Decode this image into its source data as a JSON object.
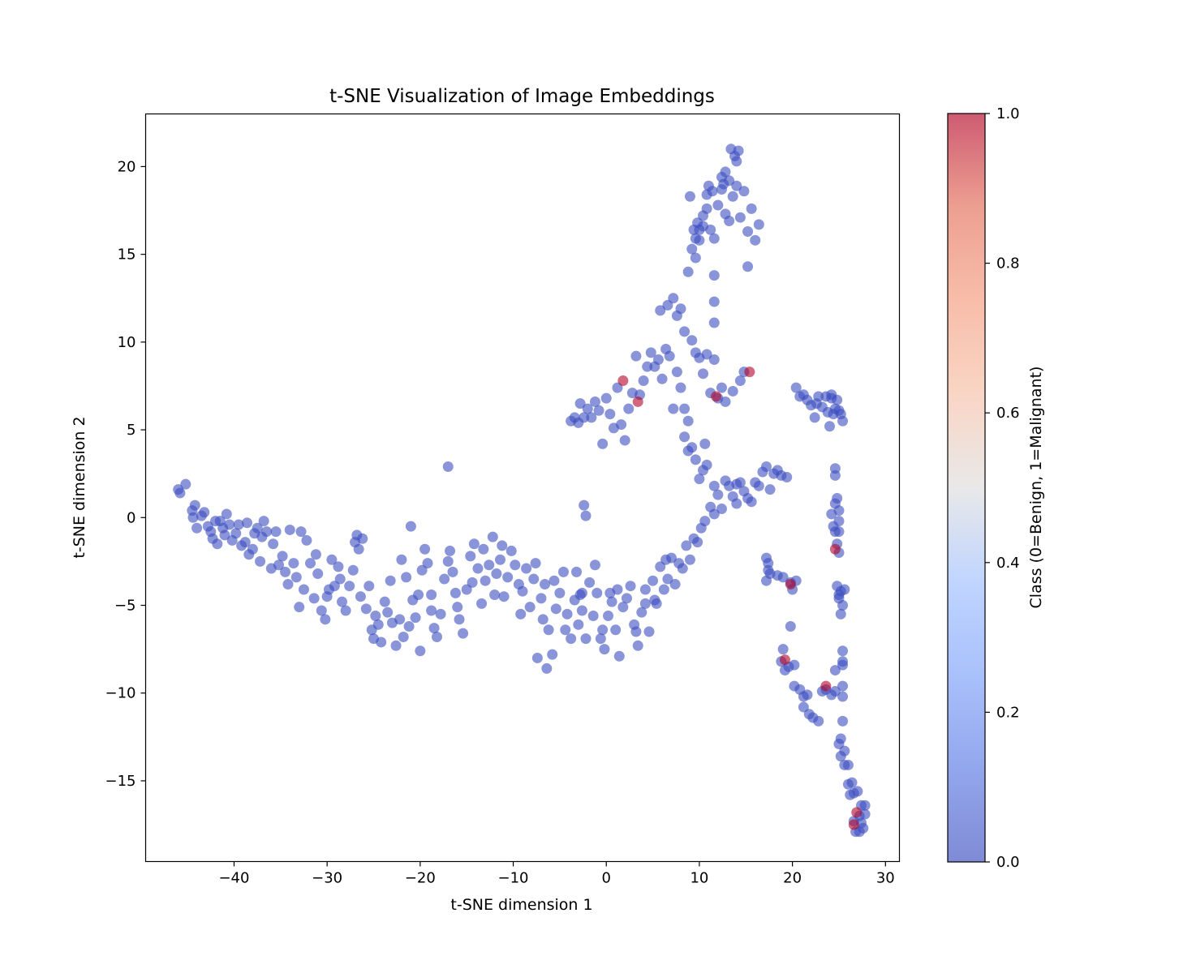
{
  "chart_data": {
    "type": "scatter",
    "title": "t-SNE Visualization of Image Embeddings",
    "xlabel": "t-SNE dimension 1",
    "ylabel": "t-SNE dimension 2",
    "xlim": [
      -49.5,
      31.5
    ],
    "ylim": [
      -19.6,
      23
    ],
    "xticks": [
      -40,
      -30,
      -20,
      -10,
      0,
      10,
      20,
      30
    ],
    "yticks": [
      -15,
      -10,
      -5,
      0,
      5,
      10,
      15,
      20
    ],
    "x_tick_labels": [
      "−40",
      "−30",
      "−20",
      "−10",
      "0",
      "10",
      "20",
      "30"
    ],
    "y_tick_labels": [
      "−15",
      "−10",
      "−5",
      "0",
      "5",
      "10",
      "15",
      "20"
    ],
    "grid": false,
    "colorbar": {
      "label": "Class (0=Benign, 1=Malignant)",
      "range": [
        0,
        1
      ],
      "ticks": [
        0,
        0.2,
        0.4,
        0.6,
        0.8,
        1
      ],
      "tick_labels": [
        "0.0",
        "0.2",
        "0.4",
        "0.6",
        "0.8",
        "1.0"
      ],
      "colormap": "coolwarm",
      "low_color": "#3b4cc0",
      "mid_color": "#dddddd",
      "high_color": "#b40426"
    },
    "point_alpha": 0.6,
    "benign_color": "#3b4cc0",
    "malignant_color": "#b40426",
    "benign_points": [
      [
        -46,
        1.6
      ],
      [
        -45.8,
        1.4
      ],
      [
        -44.5,
        0.4
      ],
      [
        -44.2,
        0.7
      ],
      [
        -44.4,
        0
      ],
      [
        -44,
        -0.6
      ],
      [
        -43.5,
        0.1
      ],
      [
        -43.2,
        0.3
      ],
      [
        -42.8,
        -0.5
      ],
      [
        -42.5,
        -0.8
      ],
      [
        -42.3,
        -1.2
      ],
      [
        -41.8,
        -1.5
      ],
      [
        -41.5,
        -0.2
      ],
      [
        -41.2,
        -0.6
      ],
      [
        -41,
        -1
      ],
      [
        -40.8,
        0.2
      ],
      [
        -40.5,
        -0.4
      ],
      [
        -40.2,
        -1.3
      ],
      [
        -39.8,
        -0.9
      ],
      [
        -39.5,
        -0.4
      ],
      [
        -38.8,
        -1.4
      ],
      [
        -38.6,
        -0.3
      ],
      [
        -38.4,
        -2.1
      ],
      [
        -38,
        -1.8
      ],
      [
        -37.8,
        -0.9
      ],
      [
        -37.5,
        -0.6
      ],
      [
        -37,
        -1.1
      ],
      [
        -36.8,
        -0.2
      ],
      [
        -36.5,
        -0.8
      ],
      [
        -36,
        -2.9
      ],
      [
        -35.5,
        -0.8
      ],
      [
        -35.2,
        -2.7
      ],
      [
        -34.8,
        -2.2
      ],
      [
        -34.5,
        -3.1
      ],
      [
        -34,
        -0.7
      ],
      [
        -33.6,
        -2.6
      ],
      [
        -33.3,
        -3.4
      ],
      [
        -32.8,
        -0.8
      ],
      [
        -32.5,
        -4.1
      ],
      [
        -32.2,
        -1.3
      ],
      [
        -31.8,
        -2.6
      ],
      [
        -31.4,
        -4.6
      ],
      [
        -31,
        -3.2
      ],
      [
        -30.6,
        -5.3
      ],
      [
        -30.2,
        -5.8
      ],
      [
        -29.8,
        -4.1
      ],
      [
        -29.5,
        -2.4
      ],
      [
        -29.2,
        -3.9
      ],
      [
        -28.8,
        -2.8
      ],
      [
        -28.4,
        -4.8
      ],
      [
        -28,
        -5.3
      ],
      [
        -27.6,
        -3.9
      ],
      [
        -27.2,
        -3
      ],
      [
        -26.8,
        -1
      ],
      [
        -26.6,
        -1.8
      ],
      [
        -26.2,
        -1.2
      ],
      [
        -25.8,
        -5.2
      ],
      [
        -25.5,
        -3.9
      ],
      [
        -25.2,
        -6.4
      ],
      [
        -24.8,
        -5.6
      ],
      [
        -24.5,
        -6.1
      ],
      [
        -24.2,
        -7.1
      ],
      [
        -23.8,
        -4.8
      ],
      [
        -23.5,
        -5.4
      ],
      [
        -23,
        -6
      ],
      [
        -22.6,
        -7.3
      ],
      [
        -22.2,
        -5.8
      ],
      [
        -21.8,
        -6.8
      ],
      [
        -21.5,
        -3.4
      ],
      [
        -21.2,
        -6.2
      ],
      [
        -20.8,
        -4.7
      ],
      [
        -20.5,
        -5.7
      ],
      [
        -20.2,
        -4.4
      ],
      [
        -19.8,
        -3
      ],
      [
        -19.5,
        -1.8
      ],
      [
        -19.2,
        -2.6
      ],
      [
        -18.8,
        -5.3
      ],
      [
        -18.5,
        -6.3
      ],
      [
        -18.2,
        -6.8
      ],
      [
        -17.8,
        -5.5
      ],
      [
        -17.4,
        -3.5
      ],
      [
        -17,
        -2.5
      ],
      [
        -16.8,
        -1.9
      ],
      [
        -16.5,
        -3.1
      ],
      [
        -16.2,
        -4.3
      ],
      [
        -15.8,
        -5.8
      ],
      [
        -15.4,
        -6.6
      ],
      [
        -15,
        -4.1
      ],
      [
        -14.6,
        -2.2
      ],
      [
        -14.2,
        -1.5
      ],
      [
        -13.8,
        -2.9
      ],
      [
        -13.4,
        -4.9
      ],
      [
        -13,
        -3.6
      ],
      [
        -12.6,
        -2.7
      ],
      [
        -12.2,
        -1.1
      ],
      [
        -11.8,
        -3.2
      ],
      [
        -11.4,
        -2.4
      ],
      [
        -11,
        -4.5
      ],
      [
        -10.6,
        -3.4
      ],
      [
        -10.2,
        -1.9
      ],
      [
        -9.8,
        -2.7
      ],
      [
        -9.4,
        -3.8
      ],
      [
        -9,
        -4.2
      ],
      [
        -8.6,
        -2.9
      ],
      [
        -8.2,
        -5.1
      ],
      [
        -7.8,
        -3.5
      ],
      [
        -7.4,
        -8
      ],
      [
        -7,
        -4.6
      ],
      [
        -6.6,
        -3.8
      ],
      [
        -6.2,
        -6.4
      ],
      [
        -5.8,
        -7.8
      ],
      [
        -5.4,
        -5.2
      ],
      [
        -5,
        -4.3
      ],
      [
        -4.6,
        -3.1
      ],
      [
        -4.2,
        -5.5
      ],
      [
        -3.8,
        -6.9
      ],
      [
        -3.4,
        -4.7
      ],
      [
        -3,
        -6.1
      ],
      [
        -2.6,
        -5.3
      ],
      [
        -2.2,
        -6.9
      ],
      [
        -1.8,
        -3.7
      ],
      [
        -1.4,
        -5.6
      ],
      [
        -1,
        -4.3
      ],
      [
        -0.6,
        -6.9
      ],
      [
        -0.2,
        -7.5
      ],
      [
        0.2,
        -5.6
      ],
      [
        0.6,
        -4.8
      ],
      [
        1,
        -6.4
      ],
      [
        1.4,
        -7.9
      ],
      [
        1.8,
        -5.1
      ],
      [
        2.2,
        -4.6
      ],
      [
        2.6,
        -3.9
      ],
      [
        3,
        -6.1
      ],
      [
        3.4,
        -7.3
      ],
      [
        3.8,
        -5.4
      ],
      [
        4.2,
        -4.9
      ],
      [
        4.6,
        -6.5
      ],
      [
        5,
        -3.6
      ],
      [
        5.4,
        -4.9
      ],
      [
        5.8,
        -2.8
      ],
      [
        6.2,
        -4.1
      ],
      [
        6.6,
        -3.5
      ],
      [
        7,
        -2.3
      ],
      [
        7.4,
        -3.8
      ],
      [
        7.8,
        -2.6
      ],
      [
        8.2,
        -2.9
      ],
      [
        8.6,
        -1.6
      ],
      [
        9,
        -2.4
      ],
      [
        9.4,
        -1.2
      ],
      [
        9.8,
        -1.4
      ],
      [
        10.2,
        -0.6
      ],
      [
        10.6,
        -0.2
      ],
      [
        -45.2,
        1.9
      ],
      [
        -42,
        -0.2
      ],
      [
        -39.2,
        -1.6
      ],
      [
        -37.2,
        -2.5
      ],
      [
        -35.8,
        -1.5
      ],
      [
        -34.2,
        -3.8
      ],
      [
        -33,
        -5.1
      ],
      [
        -31.2,
        -2.1
      ],
      [
        -30,
        -4.5
      ],
      [
        -28.6,
        -3.5
      ],
      [
        -27,
        -1.4
      ],
      [
        -26.4,
        -4.5
      ],
      [
        -25,
        -6.9
      ],
      [
        -23.2,
        -3.6
      ],
      [
        -22,
        -2.4
      ],
      [
        -21,
        -0.5
      ],
      [
        -20,
        -7.6
      ],
      [
        -18.8,
        -4.4
      ],
      [
        -17,
        2.9
      ],
      [
        -16,
        -5.1
      ],
      [
        -14.4,
        -3.7
      ],
      [
        -13.2,
        -1.8
      ],
      [
        -12,
        -4.4
      ],
      [
        -11.2,
        -1.6
      ],
      [
        -9.2,
        -5.5
      ],
      [
        -7.6,
        -2.6
      ],
      [
        -6.8,
        -5.8
      ],
      [
        -6.4,
        -8.6
      ],
      [
        -5.6,
        -3.6
      ],
      [
        -4.4,
        -6.4
      ],
      [
        -3.2,
        -3.1
      ],
      [
        -2.8,
        -4.4
      ],
      [
        -2.6,
        -4.3
      ],
      [
        -2.4,
        0.7
      ],
      [
        -2.2,
        0.1
      ],
      [
        -1.2,
        -2.7
      ],
      [
        -0.4,
        -6.4
      ],
      [
        0.4,
        -4.3
      ],
      [
        1.2,
        -4.1
      ],
      [
        3.2,
        -6.5
      ],
      [
        4.2,
        -4.1
      ],
      [
        5.2,
        -4.7
      ],
      [
        6.4,
        -2.4
      ],
      [
        -3.8,
        5.5
      ],
      [
        -3.4,
        5.7
      ],
      [
        -3,
        5.4
      ],
      [
        -2.8,
        6.5
      ],
      [
        -2.4,
        5.7
      ],
      [
        -2,
        6.2
      ],
      [
        -1.6,
        5.7
      ],
      [
        -1.2,
        6.6
      ],
      [
        -0.8,
        6.1
      ],
      [
        -0.4,
        4.2
      ],
      [
        0,
        6.8
      ],
      [
        0.4,
        5.9
      ],
      [
        0.8,
        5.1
      ],
      [
        1.2,
        7.4
      ],
      [
        1.6,
        5.3
      ],
      [
        2,
        4.4
      ],
      [
        2.4,
        6.2
      ],
      [
        2.8,
        7.1
      ],
      [
        3.2,
        9.2
      ],
      [
        3.6,
        7
      ],
      [
        4,
        7.8
      ],
      [
        4.4,
        8.6
      ],
      [
        4.8,
        9.4
      ],
      [
        5.2,
        8.6
      ],
      [
        5.6,
        9
      ],
      [
        6,
        7.9
      ],
      [
        6.4,
        9.6
      ],
      [
        6.8,
        9.2
      ],
      [
        7.2,
        6.2
      ],
      [
        7.6,
        8.3
      ],
      [
        8,
        7.4
      ],
      [
        8.4,
        6.2
      ],
      [
        8.8,
        5.5
      ],
      [
        9.2,
        10.1
      ],
      [
        9.6,
        9.4
      ],
      [
        10,
        9.1
      ],
      [
        10.4,
        8.2
      ],
      [
        10.8,
        9.3
      ],
      [
        11.2,
        7.1
      ],
      [
        11.6,
        9
      ],
      [
        12,
        6.8
      ],
      [
        12.4,
        7.4
      ],
      [
        12.8,
        6.6
      ],
      [
        13.6,
        7.2
      ],
      [
        14,
        1.9
      ],
      [
        14.4,
        7.8
      ],
      [
        14.8,
        8.3
      ],
      [
        8.4,
        4.6
      ],
      [
        8.8,
        3.8
      ],
      [
        9.2,
        4
      ],
      [
        9.6,
        3.3
      ],
      [
        10,
        2.2
      ],
      [
        10.4,
        2.7
      ],
      [
        10.8,
        3
      ],
      [
        11.2,
        0.6
      ],
      [
        11.6,
        0.2
      ],
      [
        12,
        1.3
      ],
      [
        12.4,
        0.5
      ],
      [
        12.8,
        2.1
      ],
      [
        13.2,
        1.8
      ],
      [
        13.6,
        1.2
      ],
      [
        14,
        0.8
      ],
      [
        14.4,
        2
      ],
      [
        14.8,
        1.5
      ],
      [
        15.2,
        1.1
      ],
      [
        15.6,
        0.9
      ],
      [
        16,
        2
      ],
      [
        16.4,
        1.8
      ],
      [
        16.8,
        2.6
      ],
      [
        17.2,
        2.9
      ],
      [
        17.6,
        1.6
      ],
      [
        18,
        2.5
      ],
      [
        18.4,
        2.7
      ],
      [
        18.8,
        2.4
      ],
      [
        19.4,
        2.3
      ],
      [
        11.6,
        1.8
      ],
      [
        10.6,
        4.2
      ],
      [
        5.8,
        11.8
      ],
      [
        6.6,
        12.1
      ],
      [
        7.2,
        12.5
      ],
      [
        7.6,
        11.5
      ],
      [
        8,
        11.9
      ],
      [
        8.4,
        10.6
      ],
      [
        8.8,
        14
      ],
      [
        9.2,
        15.3
      ],
      [
        9.6,
        14.8
      ],
      [
        10,
        15.8
      ],
      [
        10.4,
        16.6
      ],
      [
        10.8,
        17.6
      ],
      [
        11.2,
        16.4
      ],
      [
        11.6,
        15.9
      ],
      [
        12,
        17.8
      ],
      [
        12.4,
        18.7
      ],
      [
        12.8,
        17.3
      ],
      [
        13.2,
        16.9
      ],
      [
        13.6,
        18.3
      ],
      [
        14,
        18.9
      ],
      [
        14.4,
        17.1
      ],
      [
        14.8,
        18.6
      ],
      [
        15.2,
        16.3
      ],
      [
        15.6,
        17.6
      ],
      [
        16,
        15.8
      ],
      [
        16.4,
        16.7
      ],
      [
        13.4,
        21
      ],
      [
        13.8,
        20.6
      ],
      [
        14.2,
        20.9
      ],
      [
        12.4,
        19.4
      ],
      [
        12.8,
        19.7
      ],
      [
        13.2,
        19.2
      ],
      [
        11.4,
        18.6
      ],
      [
        10.8,
        18.4
      ],
      [
        10.4,
        17.2
      ],
      [
        9.8,
        16.8
      ],
      [
        9.4,
        16.4
      ],
      [
        9,
        18.3
      ],
      [
        15.2,
        14.3
      ],
      [
        11.6,
        13.8
      ],
      [
        11.6,
        12.3
      ],
      [
        11.6,
        11.1
      ],
      [
        9.6,
        15.9
      ],
      [
        10,
        16.4
      ],
      [
        12.6,
        19
      ],
      [
        14,
        20.3
      ],
      [
        11,
        18.9
      ],
      [
        20.4,
        7.4
      ],
      [
        20.8,
        6.9
      ],
      [
        21.2,
        7
      ],
      [
        21.6,
        6.7
      ],
      [
        22,
        6.4
      ],
      [
        22.4,
        5.7
      ],
      [
        22.8,
        6.9
      ],
      [
        23.2,
        6.3
      ],
      [
        23.6,
        6.9
      ],
      [
        24,
        5.2
      ],
      [
        24.4,
        5.9
      ],
      [
        24.8,
        6.7
      ],
      [
        25,
        6.1
      ],
      [
        25.2,
        5.9
      ],
      [
        25.4,
        5.5
      ],
      [
        23.8,
        6
      ],
      [
        24.6,
        6.2
      ],
      [
        22.6,
        6.5
      ],
      [
        24.2,
        7
      ],
      [
        24.2,
        6.8
      ],
      [
        24.6,
        2.8
      ],
      [
        24.6,
        2.4
      ],
      [
        24.8,
        1.1
      ],
      [
        24.6,
        0.8
      ],
      [
        24.2,
        0.2
      ],
      [
        24.4,
        -0.5
      ],
      [
        24.6,
        -0.8
      ],
      [
        25,
        -0.8
      ],
      [
        25,
        -2
      ],
      [
        24.8,
        -1.5
      ],
      [
        25,
        -0.2
      ],
      [
        25,
        0.4
      ],
      [
        24.8,
        -3.9
      ],
      [
        25,
        -4.4
      ],
      [
        25,
        -4.6
      ],
      [
        25.2,
        -4.2
      ],
      [
        25.6,
        -4.1
      ],
      [
        25.4,
        -5
      ],
      [
        25.2,
        -5.5
      ],
      [
        24.6,
        -8.7
      ],
      [
        25.4,
        -7.6
      ],
      [
        25.4,
        -8.2
      ],
      [
        25.4,
        -9.6
      ],
      [
        25.4,
        -10.2
      ],
      [
        25.4,
        -11.6
      ],
      [
        25.2,
        -12.6
      ],
      [
        25,
        -12.9
      ],
      [
        25.6,
        -13.3
      ],
      [
        25.2,
        -13.6
      ],
      [
        25.6,
        -14.1
      ],
      [
        26,
        -14.1
      ],
      [
        26,
        -15.2
      ],
      [
        26.4,
        -15.1
      ],
      [
        26.6,
        -15.7
      ],
      [
        26.2,
        -15.8
      ],
      [
        27,
        -15.6
      ],
      [
        27.4,
        -16.4
      ],
      [
        27.8,
        -16.4
      ],
      [
        27.8,
        -16.9
      ],
      [
        27.2,
        -17
      ],
      [
        26.6,
        -17.3
      ],
      [
        27.4,
        -17.4
      ],
      [
        27.6,
        -17.7
      ],
      [
        27.2,
        -17.9
      ],
      [
        26.8,
        -17.9
      ],
      [
        24.6,
        -9.9
      ],
      [
        24.2,
        -10.1
      ],
      [
        23.6,
        -9.8
      ],
      [
        25.4,
        -8.4
      ],
      [
        17.2,
        -2.3
      ],
      [
        17.4,
        -2.6
      ],
      [
        17.4,
        -3
      ],
      [
        17.6,
        -3.2
      ],
      [
        17.2,
        -3.6
      ],
      [
        18.4,
        -3.3
      ],
      [
        19,
        -3.4
      ],
      [
        19.8,
        -3.7
      ],
      [
        20,
        -4.1
      ],
      [
        20.4,
        -3.6
      ],
      [
        19.8,
        -6.2
      ],
      [
        19,
        -7.5
      ],
      [
        18.8,
        -8.2
      ],
      [
        19.2,
        -8.7
      ],
      [
        19.6,
        -8.5
      ],
      [
        20.2,
        -8.4
      ],
      [
        20.2,
        -9.6
      ],
      [
        20.8,
        -9.8
      ],
      [
        21.2,
        -10.2
      ],
      [
        21.6,
        -10.1
      ],
      [
        21.2,
        -10.8
      ],
      [
        21.8,
        -11.2
      ],
      [
        22.2,
        -11.4
      ],
      [
        22.8,
        -11.6
      ],
      [
        23.2,
        -9.9
      ]
    ],
    "malignant_points": [
      [
        1.8,
        7.8
      ],
      [
        3.4,
        6.6
      ],
      [
        11.8,
        6.9
      ],
      [
        15.4,
        8.3
      ],
      [
        24.6,
        -1.8
      ],
      [
        19.8,
        -3.8
      ],
      [
        19.2,
        -8.1
      ],
      [
        23.6,
        -9.6
      ],
      [
        26.9,
        -16.8
      ],
      [
        26.6,
        -17.5
      ]
    ]
  }
}
